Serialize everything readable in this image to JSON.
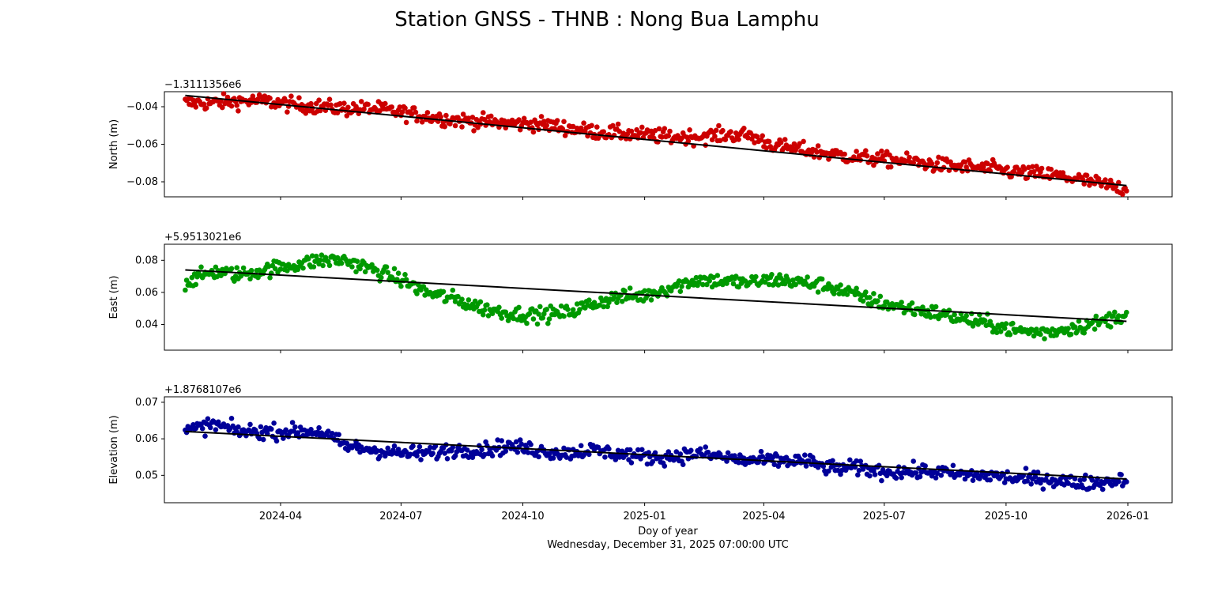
{
  "title": "Station GNSS - THNB : Nong Bua Lamphu",
  "xlabel": "Doy of year",
  "timestamp": "Wednesday, December 31, 2025 07:00:00 UTC",
  "chart_data": [
    {
      "type": "scatter",
      "ylabel": "North (m)",
      "offset_label": "−1.3111356e6",
      "color": "#cc0000",
      "trend_color": "#000000",
      "x_range": [
        "2024-01-20",
        "2025-12-31"
      ],
      "ylim": [
        -0.088,
        -0.032
      ],
      "yticks": [
        -0.04,
        -0.06,
        -0.08
      ],
      "ytick_labels": [
        "−0.04",
        "−0.06",
        "−0.08"
      ],
      "trend": {
        "x": [
          "2024-01-20",
          "2025-12-31"
        ],
        "y": [
          -0.034,
          -0.082
        ]
      },
      "series": [
        {
          "x": [
            "2024-01-20",
            "2024-02-10",
            "2024-03-01",
            "2024-03-20",
            "2024-04-10",
            "2024-05-01",
            "2024-05-20",
            "2024-06-10",
            "2024-07-01",
            "2024-07-20",
            "2024-08-10",
            "2024-09-01",
            "2024-09-20",
            "2024-10-10",
            "2024-11-01",
            "2024-11-20",
            "2024-12-10",
            "2025-01-01",
            "2025-01-20",
            "2025-02-10",
            "2025-03-01",
            "2025-03-20",
            "2025-04-10",
            "2025-05-01",
            "2025-05-20",
            "2025-06-10",
            "2025-07-01",
            "2025-07-20",
            "2025-08-10",
            "2025-09-01",
            "2025-09-20",
            "2025-10-10",
            "2025-11-01",
            "2025-11-20",
            "2025-12-10",
            "2025-12-31"
          ],
          "y": [
            -0.038,
            -0.038,
            -0.037,
            -0.037,
            -0.039,
            -0.04,
            -0.041,
            -0.041,
            -0.043,
            -0.045,
            -0.047,
            -0.048,
            -0.049,
            -0.049,
            -0.051,
            -0.053,
            -0.054,
            -0.055,
            -0.056,
            -0.056,
            -0.055,
            -0.055,
            -0.061,
            -0.063,
            -0.065,
            -0.067,
            -0.068,
            -0.069,
            -0.071,
            -0.072,
            -0.073,
            -0.075,
            -0.076,
            -0.078,
            -0.081,
            -0.084
          ]
        }
      ]
    },
    {
      "type": "scatter",
      "ylabel": "East (m)",
      "offset_label": "+5.9513021e6",
      "color": "#009900",
      "trend_color": "#000000",
      "x_range": [
        "2024-01-20",
        "2025-12-31"
      ],
      "ylim": [
        0.024,
        0.09
      ],
      "yticks": [
        0.08,
        0.06,
        0.04
      ],
      "ytick_labels": [
        "0.08",
        "0.06",
        "0.04"
      ],
      "trend": {
        "x": [
          "2024-01-20",
          "2025-12-31"
        ],
        "y": [
          0.074,
          0.042
        ]
      },
      "series": [
        {
          "x": [
            "2024-01-20",
            "2024-02-10",
            "2024-03-01",
            "2024-03-20",
            "2024-04-10",
            "2024-05-01",
            "2024-05-20",
            "2024-06-10",
            "2024-07-01",
            "2024-07-20",
            "2024-08-10",
            "2024-09-01",
            "2024-09-20",
            "2024-10-10",
            "2024-11-01",
            "2024-11-20",
            "2024-12-10",
            "2025-01-01",
            "2025-01-20",
            "2025-02-10",
            "2025-03-01",
            "2025-03-20",
            "2025-04-10",
            "2025-05-01",
            "2025-05-20",
            "2025-06-10",
            "2025-07-01",
            "2025-07-20",
            "2025-08-10",
            "2025-09-01",
            "2025-09-20",
            "2025-10-10",
            "2025-11-01",
            "2025-11-20",
            "2025-12-10",
            "2025-12-31"
          ],
          "y": [
            0.066,
            0.073,
            0.071,
            0.074,
            0.077,
            0.08,
            0.08,
            0.074,
            0.068,
            0.06,
            0.056,
            0.05,
            0.047,
            0.046,
            0.047,
            0.052,
            0.057,
            0.058,
            0.063,
            0.068,
            0.067,
            0.066,
            0.068,
            0.066,
            0.064,
            0.058,
            0.053,
            0.05,
            0.047,
            0.043,
            0.04,
            0.036,
            0.035,
            0.038,
            0.041,
            0.047
          ]
        }
      ]
    },
    {
      "type": "scatter",
      "ylabel": "Elevation (m)",
      "offset_label": "+1.8768107e6",
      "color": "#000099",
      "trend_color": "#000000",
      "x_range": [
        "2024-01-20",
        "2025-12-31"
      ],
      "ylim": [
        0.0425,
        0.0715
      ],
      "yticks": [
        0.07,
        0.06,
        0.05
      ],
      "ytick_labels": [
        "0.07",
        "0.06",
        "0.05"
      ],
      "trend": {
        "x": [
          "2024-01-20",
          "2025-12-31"
        ],
        "y": [
          0.062,
          0.049
        ]
      },
      "series": [
        {
          "x": [
            "2024-01-20",
            "2024-02-10",
            "2024-03-01",
            "2024-03-20",
            "2024-04-10",
            "2024-05-01",
            "2024-05-20",
            "2024-06-10",
            "2024-07-01",
            "2024-07-20",
            "2024-08-10",
            "2024-09-01",
            "2024-09-20",
            "2024-10-10",
            "2024-11-01",
            "2024-11-20",
            "2024-12-10",
            "2025-01-01",
            "2025-01-20",
            "2025-02-10",
            "2025-03-01",
            "2025-03-20",
            "2025-04-10",
            "2025-05-01",
            "2025-05-20",
            "2025-06-10",
            "2025-07-01",
            "2025-07-20",
            "2025-08-10",
            "2025-09-01",
            "2025-09-20",
            "2025-10-10",
            "2025-11-01",
            "2025-11-20",
            "2025-12-10",
            "2025-12-31"
          ],
          "y": [
            0.062,
            0.064,
            0.062,
            0.062,
            0.062,
            0.062,
            0.058,
            0.057,
            0.056,
            0.056,
            0.057,
            0.057,
            0.058,
            0.057,
            0.056,
            0.057,
            0.056,
            0.055,
            0.055,
            0.056,
            0.055,
            0.054,
            0.054,
            0.054,
            0.052,
            0.052,
            0.051,
            0.051,
            0.051,
            0.05,
            0.05,
            0.049,
            0.049,
            0.048,
            0.048,
            0.049
          ]
        }
      ]
    }
  ],
  "xticks": [
    "2024-04-01",
    "2024-07-01",
    "2024-10-01",
    "2025-01-01",
    "2025-04-01",
    "2025-07-01",
    "2025-10-01",
    "2026-01-01"
  ],
  "xtick_labels": [
    "2024-04",
    "2024-07",
    "2024-10",
    "2025-01",
    "2025-04",
    "2025-07",
    "2025-10",
    "2026-01"
  ]
}
